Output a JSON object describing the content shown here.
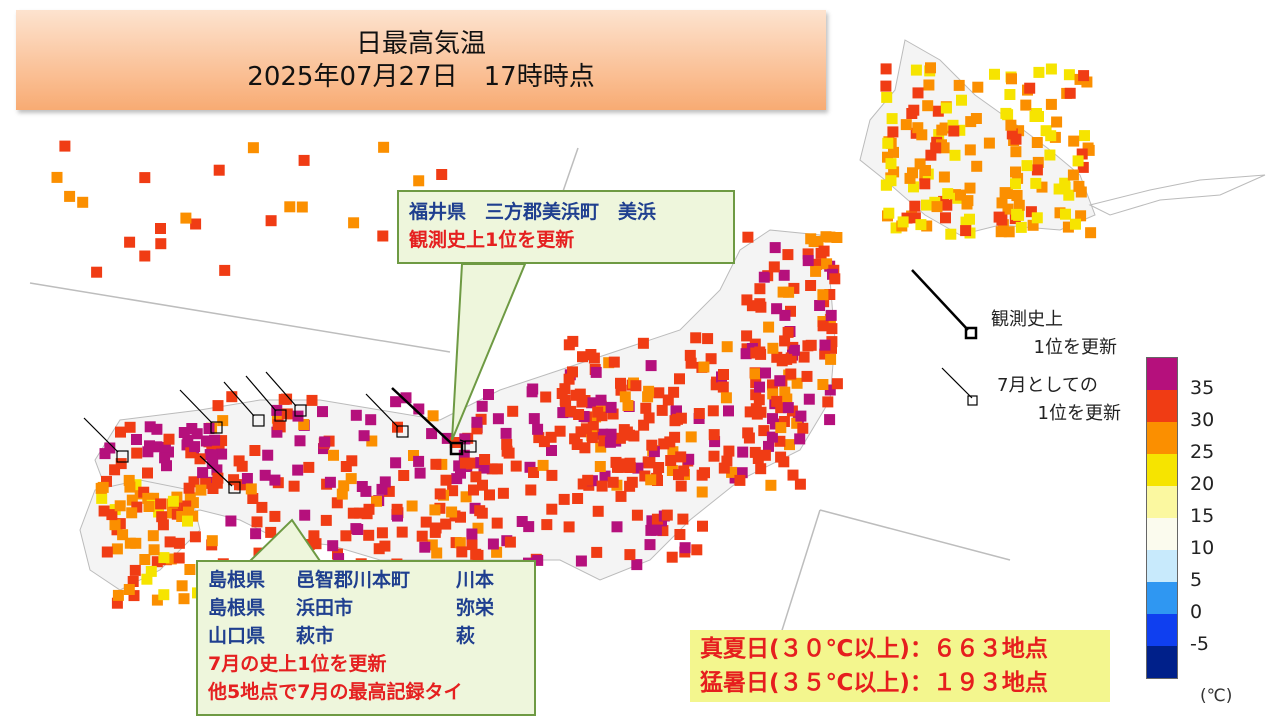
{
  "title": {
    "line1": "日最高気温",
    "line2": "2025年07月27日　17時時点"
  },
  "callout_fukui": {
    "line1": "福井県　三方郡美浜町　美浜",
    "line2": "観測史上1位を更新"
  },
  "callout_west": {
    "rows": [
      {
        "pref": "島根県",
        "city": "邑智郡川本町",
        "station": "川本"
      },
      {
        "pref": "島根県",
        "city": "浜田市",
        "station": "弥栄"
      },
      {
        "pref": "山口県",
        "city": "萩市",
        "station": "萩"
      }
    ],
    "note1": "7月の史上1位を更新",
    "note2": "他5地点で7月の最高記録タイ"
  },
  "record_legend": {
    "alltime_line1": "観測史上",
    "alltime_line2": "1位を更新",
    "july_line1": "7月としての",
    "july_line2": "1位を更新"
  },
  "color_legend": {
    "labels": [
      "35",
      "30",
      "25",
      "20",
      "15",
      "10",
      "5",
      "0",
      "-5"
    ],
    "colors": [
      "#b5107c",
      "#f03c14",
      "#fb8f00",
      "#f6e400",
      "#fbf8a0",
      "#fbfbee",
      "#c8eafc",
      "#2f97f2",
      "#0f3ff0",
      "#00208a"
    ],
    "unit": "(℃)"
  },
  "summary": {
    "line1": "真夏日(３０℃以上)：６６３地点",
    "line2": "猛暑日(３５℃以上)：１９３地点"
  }
}
